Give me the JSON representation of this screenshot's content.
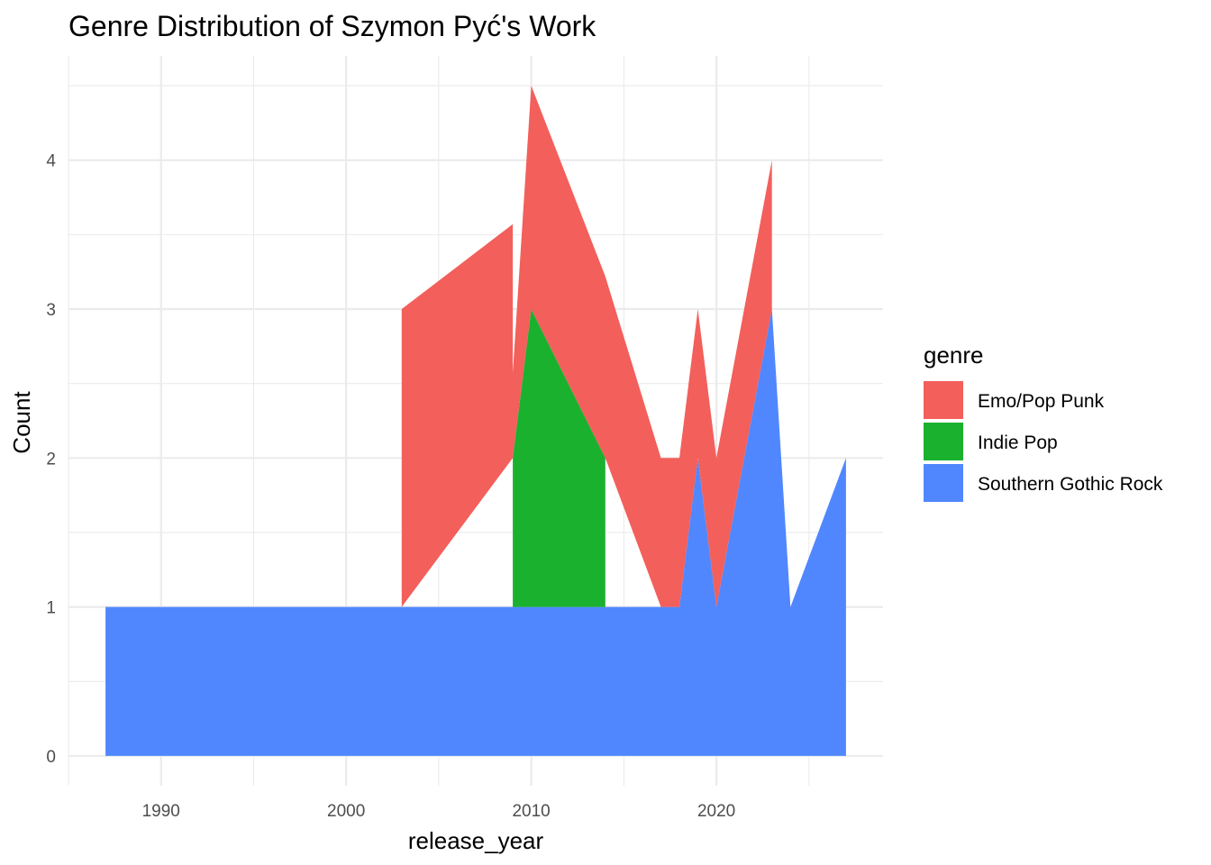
{
  "chart_data": {
    "type": "area",
    "stacked": true,
    "title": "Genre Distribution of Szymon Pyć's Work",
    "xlabel": "release_year",
    "ylabel": "Count",
    "xlim": [
      1985,
      2029
    ],
    "ylim": [
      -0.2,
      4.7
    ],
    "x_ticks": [
      1990,
      2000,
      2010,
      2020
    ],
    "y_ticks": [
      0,
      1,
      2,
      3,
      4
    ],
    "grid": true,
    "legend": {
      "title": "genre",
      "placement": "right"
    },
    "series": [
      {
        "name": "Southern Gothic Rock",
        "color": "#5087FF",
        "points": [
          [
            1987,
            1
          ],
          [
            2018,
            1
          ],
          [
            2019,
            2
          ],
          [
            2020,
            1
          ],
          [
            2023,
            3
          ],
          [
            2024,
            1
          ],
          [
            2027,
            2
          ]
        ]
      },
      {
        "name": "Indie Pop",
        "color": "#1AB12F",
        "points": [
          [
            2009,
            0
          ],
          [
            2009,
            1
          ],
          [
            2010,
            2
          ],
          [
            2014,
            1
          ],
          [
            2014,
            0
          ]
        ]
      },
      {
        "name": "Emo/Pop Punk",
        "color": "#F35F5B",
        "points": [
          [
            2003,
            0
          ],
          [
            2003,
            2
          ],
          [
            2009,
            1.57
          ],
          [
            2009,
            0.57
          ],
          [
            2010,
            1.5
          ],
          [
            2014,
            1.22
          ],
          [
            2014,
            1.22
          ],
          [
            2017,
            1
          ],
          [
            2018,
            1
          ],
          [
            2019,
            1
          ],
          [
            2020,
            1
          ],
          [
            2023,
            1
          ],
          [
            2023,
            0
          ]
        ]
      }
    ]
  }
}
